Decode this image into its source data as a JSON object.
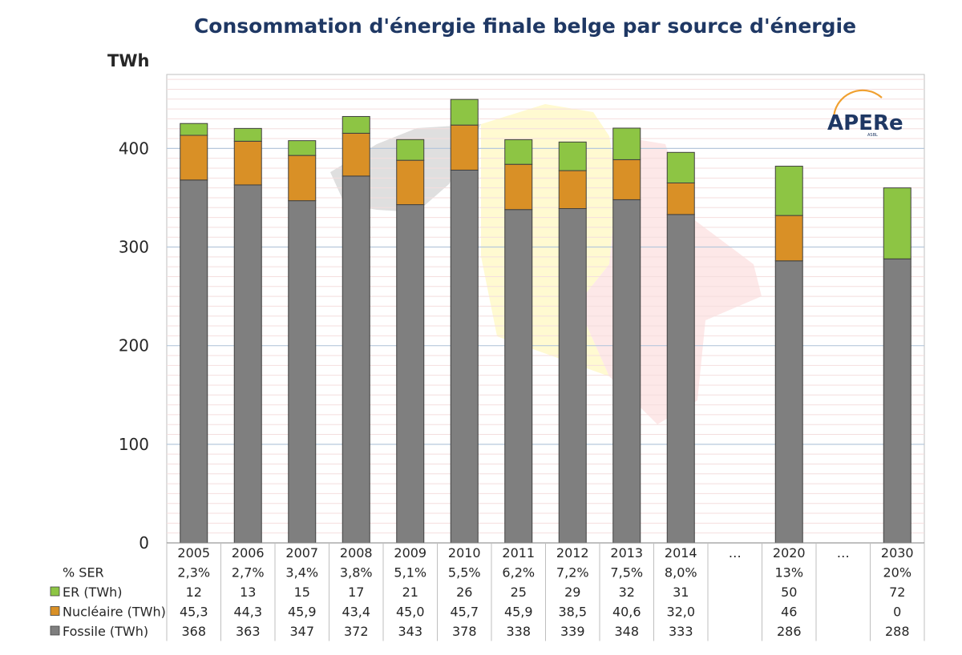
{
  "chart_data": {
    "type": "bar",
    "stacked": true,
    "title": "Consommation d'énergie finale belge par source d'énergie",
    "ylabel": "TWh",
    "ylim": [
      0,
      475
    ],
    "yticks": [
      0,
      100,
      200,
      300,
      400
    ],
    "grid": true,
    "logo_text": "APERe",
    "logo_small_text": "ASBL",
    "categories": [
      "2005",
      "2006",
      "2007",
      "2008",
      "2009",
      "2010",
      "2011",
      "2012",
      "2013",
      "2014",
      "...",
      "2020",
      "...",
      "2030"
    ],
    "series": [
      {
        "name": "Fossile (TWh)",
        "color": "#7f7f7f",
        "values": [
          368,
          363,
          347,
          372,
          343,
          378,
          338,
          339,
          348,
          333,
          null,
          286,
          null,
          288
        ],
        "labels": [
          "368",
          "363",
          "347",
          "372",
          "343",
          "378",
          "338",
          "339",
          "348",
          "333",
          "",
          "286",
          "",
          "288"
        ]
      },
      {
        "name": "Nucléaire (TWh)",
        "color": "#d99026",
        "values": [
          45.3,
          44.3,
          45.9,
          43.4,
          45.0,
          45.7,
          45.9,
          38.5,
          40.6,
          32.0,
          null,
          46,
          null,
          0
        ],
        "labels": [
          "45,3",
          "44,3",
          "45,9",
          "43,4",
          "45,0",
          "45,7",
          "45,9",
          "38,5",
          "40,6",
          "32,0",
          "",
          "46",
          "",
          "0"
        ]
      },
      {
        "name": "ER (TWh)",
        "color": "#8dc544",
        "values": [
          12,
          13,
          15,
          17,
          21,
          26,
          25,
          29,
          32,
          31,
          null,
          50,
          null,
          72
        ],
        "labels": [
          "12",
          "13",
          "15",
          "17",
          "21",
          "26",
          "25",
          "29",
          "32",
          "31",
          "",
          "50",
          "",
          "72"
        ]
      }
    ],
    "ser_row": {
      "name": "% SER",
      "labels": [
        "2,3%",
        "2,7%",
        "3,4%",
        "3,8%",
        "5,1%",
        "5,5%",
        "6,2%",
        "7,2%",
        "7,5%",
        "8,0%",
        "",
        "13%",
        "",
        "20%"
      ]
    },
    "table_row_order": [
      "ser",
      2,
      1,
      0
    ]
  }
}
